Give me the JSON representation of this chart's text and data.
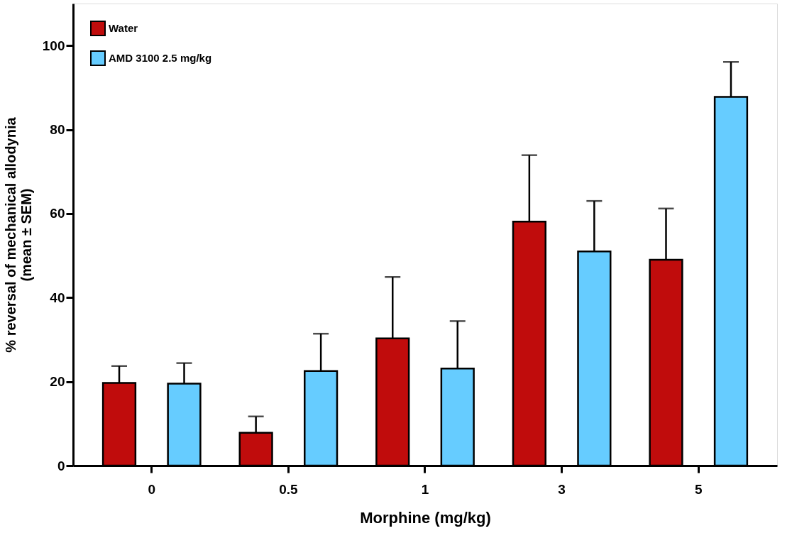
{
  "chart_data": {
    "type": "bar",
    "xlabel": "Morphine (mg/kg)",
    "ylabel": "% reversal of mechanical allodynia\n(mean ± SEM)",
    "categories": [
      "0",
      "0.5",
      "1",
      "3",
      "5"
    ],
    "series": [
      {
        "name": "Water",
        "color": "#c00c0c",
        "values": [
          19.7,
          7.8,
          30.3,
          58.1,
          49.0
        ],
        "errors": [
          [
            19.7,
            23.7
          ],
          [
            7.8,
            11.7
          ],
          [
            30.3,
            44.9
          ],
          [
            58.1,
            73.9
          ],
          [
            49.0,
            61.2
          ]
        ]
      },
      {
        "name": "AMD 3100 2.5 mg/kg",
        "color": "#66ccff",
        "values": [
          19.5,
          22.5,
          23.1,
          51.0,
          87.8
        ],
        "errors": [
          [
            19.5,
            24.4
          ],
          [
            22.5,
            31.4
          ],
          [
            23.1,
            34.4
          ],
          [
            51.0,
            63.0
          ],
          [
            87.8,
            96.1
          ]
        ]
      }
    ],
    "ylim": [
      0,
      110
    ],
    "yticks": [
      0,
      20,
      40,
      60,
      80,
      100
    ],
    "grid": false,
    "legend": "top left"
  }
}
